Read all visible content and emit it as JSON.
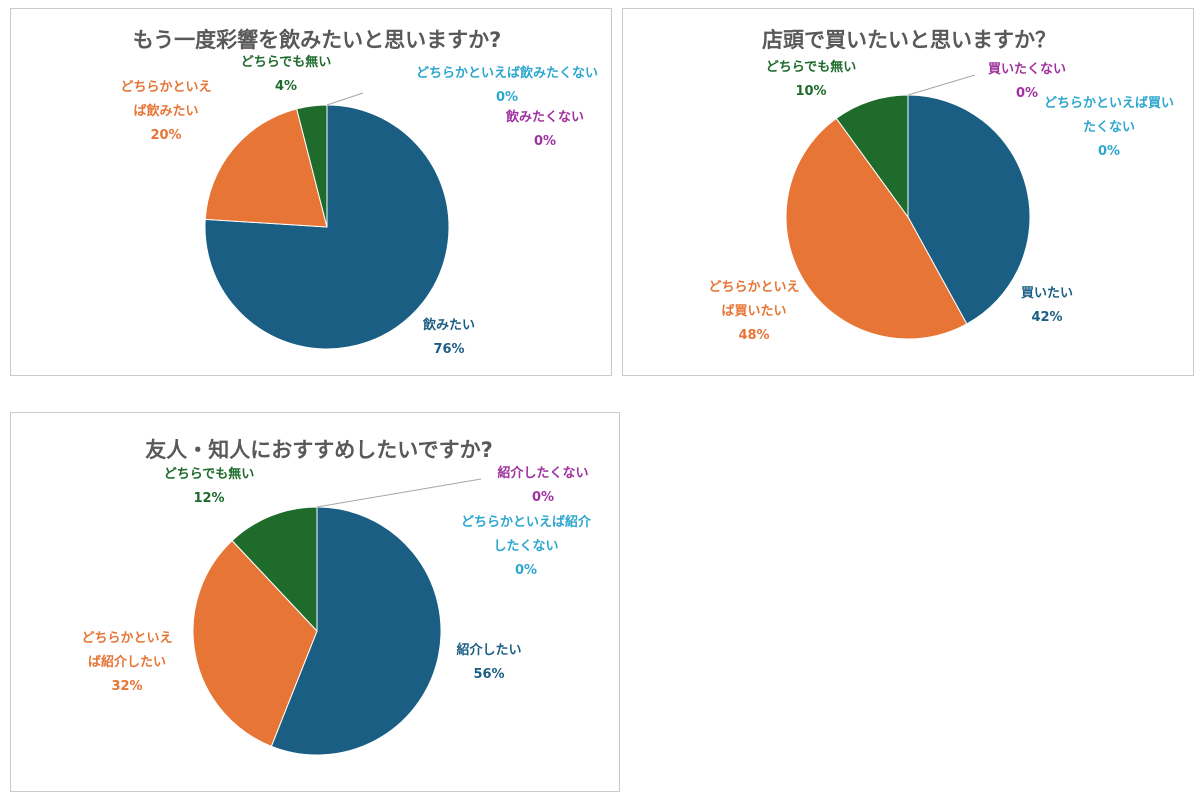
{
  "colors": {
    "blue": "#1b5e83",
    "orange": "#e67536",
    "green": "#1e6b2c",
    "purple": "#a032a0",
    "cyan": "#2da7cf",
    "leader": "#a6a6a6"
  },
  "charts": [
    {
      "title": "もう一度彩響を飲みたいと思いますか?",
      "labels": [
        {
          "lines": [
            "飲みたい"
          ],
          "pct": "76%"
        },
        {
          "lines": [
            "どちらかとい",
            "え",
            "ば飲みたい"
          ],
          "pct": "20%"
        },
        {
          "lines": [
            "どちらでも無い"
          ],
          "pct": "4%"
        },
        {
          "lines": [
            "飲みたくない"
          ],
          "pct": "0%"
        },
        {
          "lines": [
            "どちらかといえば飲みたくない"
          ],
          "pct": "0%"
        }
      ]
    },
    {
      "title": "店頭で買いたいと思いますか？",
      "labels": [
        {
          "lines": [
            "買いたい"
          ],
          "pct": "42%"
        },
        {
          "lines": [
            "どちらかとい",
            "え",
            "ば買いたい"
          ],
          "pct": "48%"
        },
        {
          "lines": [
            "どちらでも無い"
          ],
          "pct": "10%"
        },
        {
          "lines": [
            "買いたくない"
          ],
          "pct": "0%"
        },
        {
          "lines": [
            "どちらかといえば買い",
            "たくない"
          ],
          "pct": "0%"
        }
      ]
    },
    {
      "title": "友人・知人におすすめしたいですか?",
      "labels": [
        {
          "lines": [
            "紹介したい"
          ],
          "pct": "56%"
        },
        {
          "lines": [
            "どちらかとい",
            "え",
            "ば紹介したい"
          ],
          "pct": "32%"
        },
        {
          "lines": [
            "どちらでも無い"
          ],
          "pct": "12%"
        },
        {
          "lines": [
            "紹介したくない"
          ],
          "pct": "0%"
        },
        {
          "lines": [
            "どちらかといえば紹介",
            "したくない"
          ],
          "pct": "0%"
        }
      ]
    }
  ],
  "chart_data": [
    {
      "type": "pie",
      "title": "もう一度彩響を飲みたいと思いますか?",
      "categories": [
        "飲みたい",
        "どちらかといえば飲みたい",
        "どちらでも無い",
        "飲みたくない",
        "どちらかといえば飲みたくない"
      ],
      "values": [
        76,
        20,
        4,
        0,
        0
      ],
      "colors": [
        "#1b5e83",
        "#e67536",
        "#1e6b2c",
        "#a032a0",
        "#2da7cf"
      ]
    },
    {
      "type": "pie",
      "title": "店頭で買いたいと思いますか？",
      "categories": [
        "買いたい",
        "どちらかといえば買いたい",
        "どちらでも無い",
        "買いたくない",
        "どちらかといえば買いたくない"
      ],
      "values": [
        42,
        48,
        10,
        0,
        0
      ],
      "colors": [
        "#1b5e83",
        "#e67536",
        "#1e6b2c",
        "#a032a0",
        "#2da7cf"
      ]
    },
    {
      "type": "pie",
      "title": "友人・知人におすすめしたいですか?",
      "categories": [
        "紹介したい",
        "どちらかといえば紹介したい",
        "どちらでも無い",
        "紹介したくない",
        "どちらかといえば紹介したくない"
      ],
      "values": [
        56,
        32,
        12,
        0,
        0
      ],
      "colors": [
        "#1b5e83",
        "#e67536",
        "#1e6b2c",
        "#a032a0",
        "#2da7cf"
      ]
    }
  ]
}
